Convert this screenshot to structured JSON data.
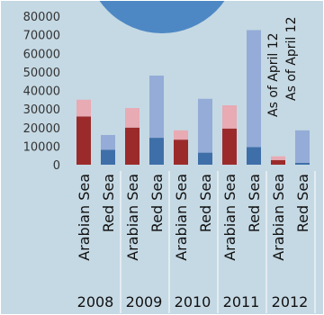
{
  "chart_data": {
    "type": "bar",
    "stacked": true,
    "title": "",
    "xlabel": "",
    "ylabel": "",
    "ylim": [
      0,
      80000
    ],
    "yticks": [
      "0",
      "10000",
      "20000",
      "30000",
      "40000",
      "50000",
      "60000",
      "70000",
      "80000"
    ],
    "grid": false,
    "groups": [
      {
        "label": "2008",
        "bars": [
          {
            "label": "Arabian Sea",
            "region": "arabian",
            "base": 26000,
            "top": 9000
          },
          {
            "label": "Red Sea",
            "region": "red",
            "base": 8000,
            "top": 8000
          }
        ]
      },
      {
        "label": "2009",
        "bars": [
          {
            "label": "Arabian Sea",
            "region": "arabian",
            "base": 20000,
            "top": 10500
          },
          {
            "label": "Red Sea",
            "region": "red",
            "base": 14500,
            "top": 33500
          }
        ]
      },
      {
        "label": "2010",
        "bars": [
          {
            "label": "Arabian Sea",
            "region": "arabian",
            "base": 13500,
            "top": 5000
          },
          {
            "label": "Red Sea",
            "region": "red",
            "base": 6500,
            "top": 29000
          }
        ]
      },
      {
        "label": "2011",
        "bars": [
          {
            "label": "Arabian Sea",
            "region": "arabian",
            "base": 19500,
            "top": 12500
          },
          {
            "label": "Red Sea",
            "region": "red",
            "base": 9500,
            "top": 63000
          }
        ]
      },
      {
        "label": "2012",
        "bars": [
          {
            "label": "Arabian Sea",
            "region": "arabian",
            "base": 2500,
            "top": 2000
          },
          {
            "label": "Red Sea",
            "region": "red",
            "base": 1000,
            "top": 17500
          }
        ]
      }
    ],
    "annotations": [
      "As of April 12",
      "As of April 12"
    ],
    "colors": {
      "arabian_base": "#9b2b2b",
      "arabian_top": "#e8aab3",
      "red_base": "#3f6fa8",
      "red_top": "#94acd7",
      "circle": "#4e88c4",
      "background": "#c5d9e4"
    }
  }
}
